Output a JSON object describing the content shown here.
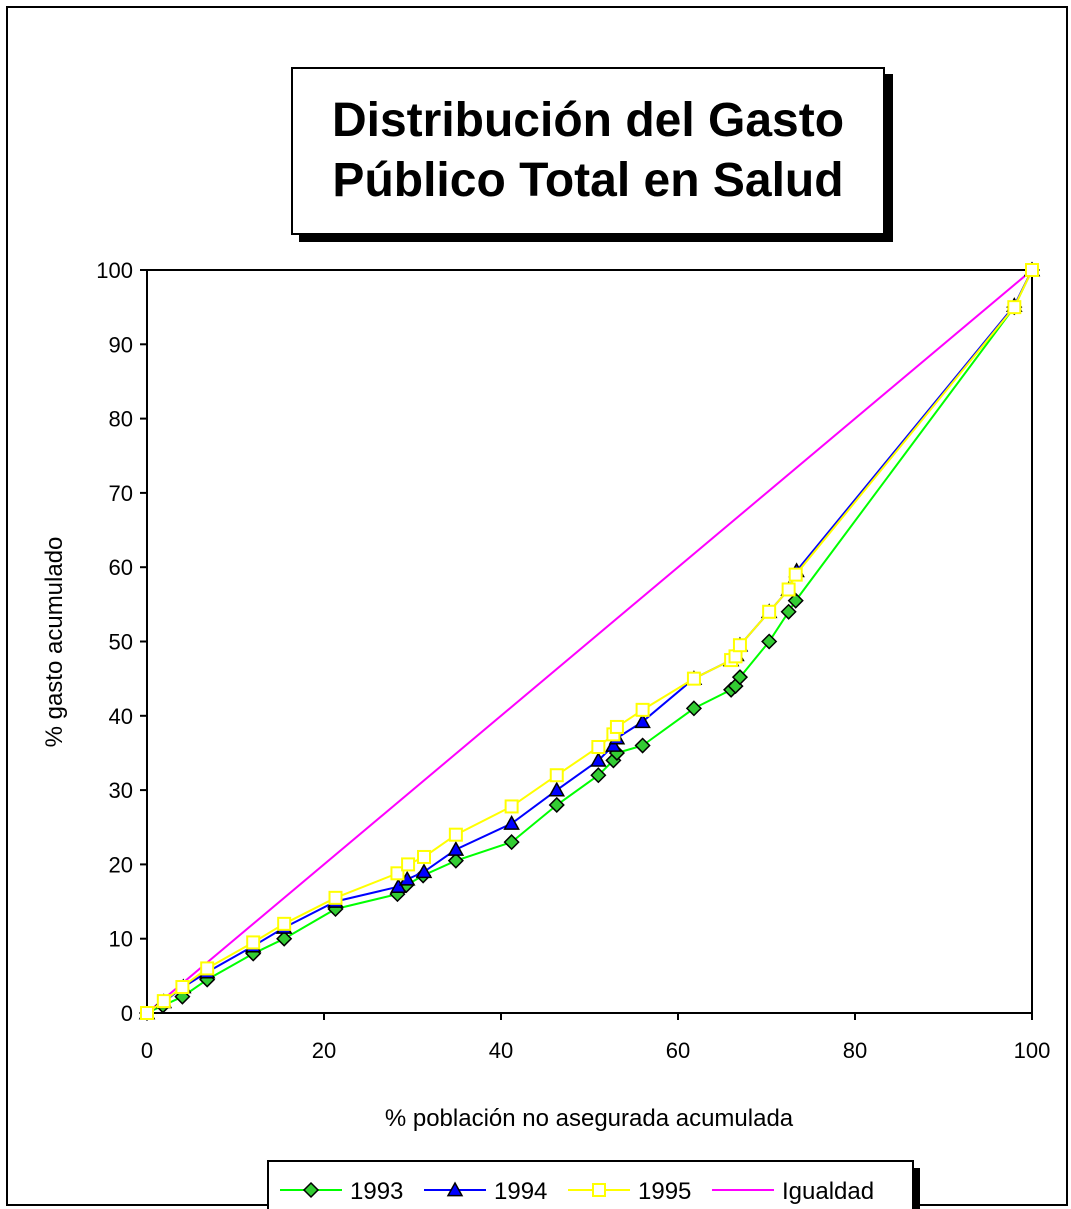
{
  "chart_data": {
    "type": "line",
    "title": "Distribución del Gasto\nPúblico Total en Salud",
    "xlabel": "% población no asegurada acumulada",
    "ylabel": "% gasto acumulado",
    "xlim": [
      0,
      100
    ],
    "ylim": [
      0,
      100
    ],
    "xticks": [
      "0",
      "20",
      "40",
      "60",
      "80",
      "100"
    ],
    "yticks": [
      "0",
      "10",
      "20",
      "30",
      "40",
      "50",
      "60",
      "70",
      "80",
      "90",
      "100"
    ],
    "grid": false,
    "legend_position": "bottom",
    "series": [
      {
        "name": "1993",
        "color": "#00ff00",
        "marker": "diamond",
        "marker_fill": "#33cc33",
        "x": [
          0,
          1.8,
          4.0,
          6.8,
          12.0,
          15.5,
          21.3,
          28.3,
          29.3,
          31.2,
          34.9,
          41.2,
          46.3,
          51.0,
          52.7,
          53.1,
          56.0,
          61.8,
          66.0,
          66.5,
          67.0,
          70.3,
          72.5,
          73.3,
          98.0,
          100
        ],
        "y": [
          0,
          1.0,
          2.2,
          4.5,
          8.0,
          10.0,
          14.0,
          16.0,
          17.2,
          18.5,
          20.5,
          23.0,
          28.0,
          32.0,
          34.0,
          35.0,
          36.0,
          41.0,
          43.5,
          44.0,
          45.2,
          50.0,
          54.0,
          55.5,
          95.0,
          100
        ]
      },
      {
        "name": "1994",
        "color": "#0000ff",
        "marker": "triangle",
        "marker_fill": "#0000ff",
        "x": [
          0,
          1.9,
          4.1,
          6.8,
          12.0,
          15.5,
          21.3,
          28.4,
          29.4,
          31.3,
          34.9,
          41.2,
          46.3,
          51.0,
          52.7,
          53.1,
          56.0,
          61.8,
          66.0,
          66.6,
          67.0,
          70.3,
          72.5,
          73.4,
          98.0,
          100
        ],
        "y": [
          0,
          1.5,
          3.5,
          5.5,
          9.0,
          11.5,
          15.0,
          17.0,
          18.0,
          19.0,
          22.0,
          25.5,
          30.0,
          34.0,
          36.0,
          37.0,
          39.2,
          45.0,
          47.5,
          48.2,
          49.5,
          54.0,
          57.0,
          59.5,
          95.2,
          100
        ]
      },
      {
        "name": "1995",
        "color": "#ffff00",
        "marker": "square",
        "marker_fill": "#ffffff",
        "x": [
          0,
          1.9,
          4.0,
          6.8,
          12.0,
          15.5,
          21.3,
          28.3,
          29.5,
          31.3,
          34.9,
          41.2,
          46.3,
          51.0,
          52.7,
          53.1,
          56.0,
          61.8,
          66.0,
          66.5,
          67.0,
          70.3,
          72.5,
          73.3,
          98.0,
          100
        ],
        "y": [
          0,
          1.6,
          3.5,
          6.0,
          9.5,
          12.0,
          15.5,
          18.8,
          20.0,
          21.0,
          24.0,
          27.8,
          32.0,
          35.8,
          37.5,
          38.5,
          40.8,
          45.0,
          47.5,
          48.0,
          49.5,
          54.0,
          57.0,
          59.0,
          95.0,
          100
        ]
      },
      {
        "name": "Igualdad",
        "color": "#ff00ff",
        "marker": "none",
        "x": [
          0,
          100
        ],
        "y": [
          0,
          100
        ]
      }
    ]
  }
}
